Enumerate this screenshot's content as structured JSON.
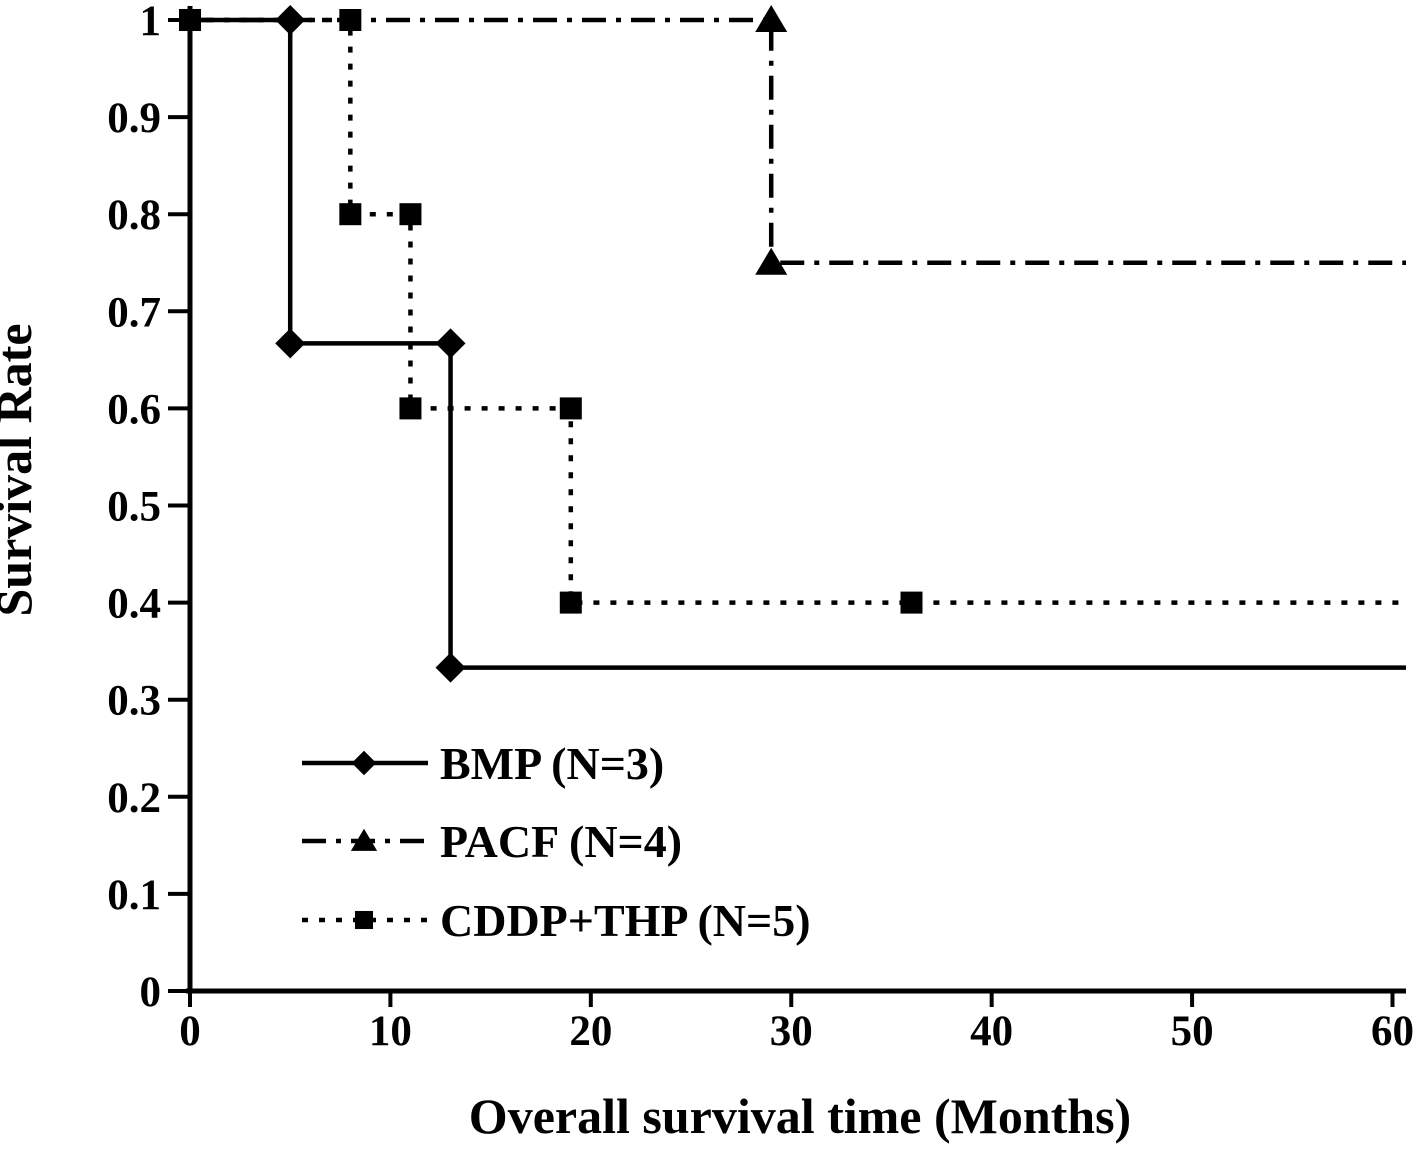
{
  "chart_data": {
    "type": "line",
    "subtype": "kaplan-meier-step",
    "title": "",
    "xlabel": "Overall survival time (Months)",
    "ylabel": "Survival Rate",
    "xlim": [
      0,
      60
    ],
    "ylim": [
      0,
      1
    ],
    "x_ticks": [
      0,
      10,
      20,
      30,
      40,
      50,
      60
    ],
    "x_tick_labels": [
      "0",
      "10",
      "20",
      "30",
      "40",
      "50",
      "60"
    ],
    "y_ticks": [
      0,
      0.1,
      0.2,
      0.3,
      0.4,
      0.5,
      0.6,
      0.7,
      0.8,
      0.9,
      1
    ],
    "y_tick_labels": [
      "0",
      "0.1",
      "0.2",
      "0.3",
      "0.4",
      "0.5",
      "0.6",
      "0.7",
      "0.8",
      "0.9",
      "1"
    ],
    "grid": false,
    "background_color": "#ffffff",
    "foreground_color": "#000000",
    "legend": {
      "position": "inside-lower-left",
      "entries": [
        "BMP (N=3)",
        "PACF (N=4)",
        "CDDP+THP (N=5)"
      ]
    },
    "series": [
      {
        "id": "bmp",
        "name": "BMP (N=3)",
        "marker": "diamond",
        "line_style": "solid",
        "color": "#000000",
        "steps": [
          [
            0,
            1
          ],
          [
            5,
            1
          ],
          [
            5,
            0.667
          ],
          [
            13,
            0.667
          ],
          [
            13,
            0.333
          ],
          [
            60,
            0.333
          ]
        ],
        "marker_points": [
          [
            5,
            1
          ],
          [
            5,
            0.667
          ],
          [
            13,
            0.667
          ],
          [
            13,
            0.333
          ]
        ]
      },
      {
        "id": "pacf",
        "name": "PACF (N=4)",
        "marker": "triangle",
        "line_style": "dash-dot",
        "color": "#000000",
        "steps": [
          [
            0,
            1
          ],
          [
            29,
            1
          ],
          [
            29,
            0.75
          ],
          [
            60,
            0.75
          ]
        ],
        "marker_points": [
          [
            29,
            1
          ],
          [
            29,
            0.75
          ]
        ]
      },
      {
        "id": "cddp-thp",
        "name": "CDDP+THP (N=5)",
        "marker": "square",
        "line_style": "dotted",
        "color": "#000000",
        "steps": [
          [
            0,
            1
          ],
          [
            8,
            1
          ],
          [
            8,
            0.8
          ],
          [
            11,
            0.8
          ],
          [
            11,
            0.6
          ],
          [
            19,
            0.6
          ],
          [
            19,
            0.4
          ],
          [
            36,
            0.4
          ],
          [
            60,
            0.4
          ]
        ],
        "marker_points": [
          [
            0,
            1
          ],
          [
            8,
            1
          ],
          [
            8,
            0.8
          ],
          [
            11,
            0.8
          ],
          [
            11,
            0.6
          ],
          [
            19,
            0.6
          ],
          [
            19,
            0.4
          ],
          [
            36,
            0.4
          ]
        ]
      }
    ]
  }
}
